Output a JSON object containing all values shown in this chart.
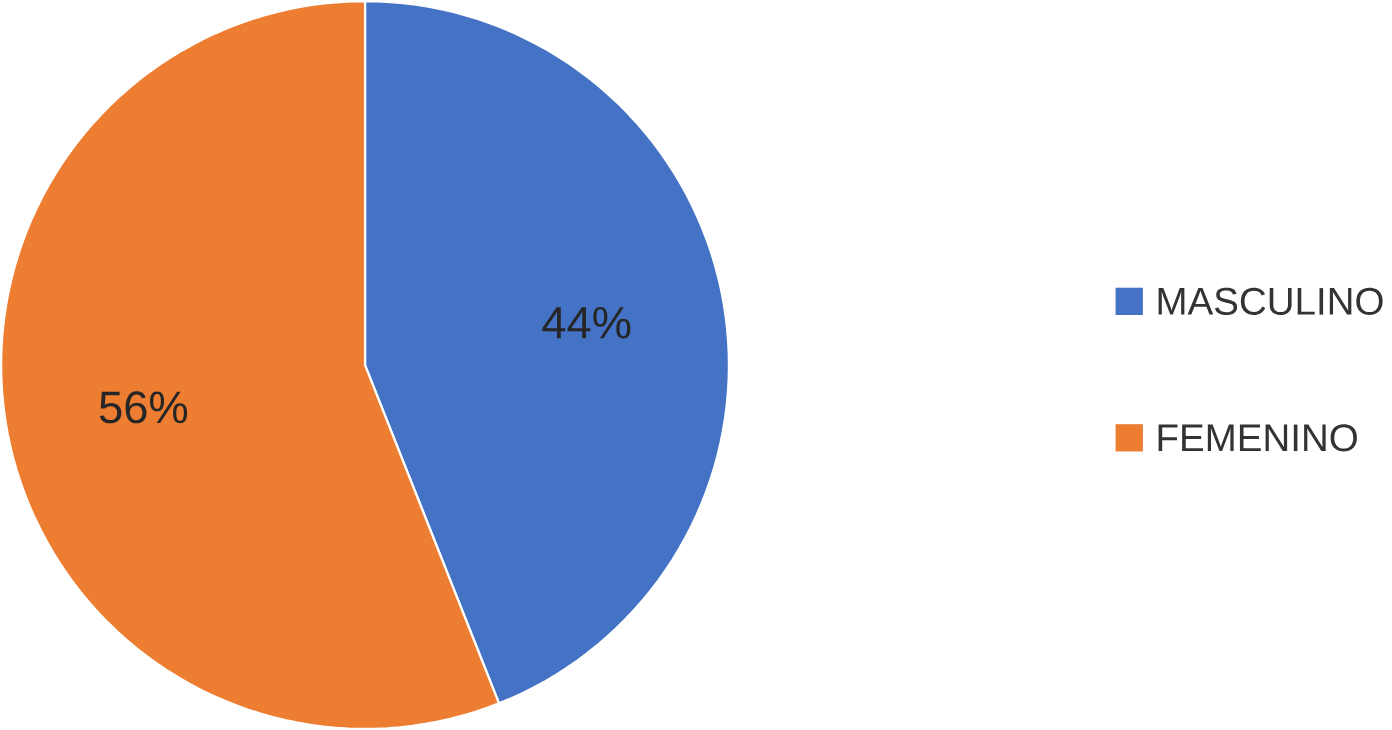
{
  "chart_data": {
    "type": "pie",
    "categories": [
      "MASCULINO",
      "FEMENINO"
    ],
    "values": [
      44,
      56
    ],
    "colors": [
      "#4472c4",
      "#ed7d31"
    ],
    "value_labels": [
      "44%",
      "56%"
    ],
    "legend": "right"
  }
}
